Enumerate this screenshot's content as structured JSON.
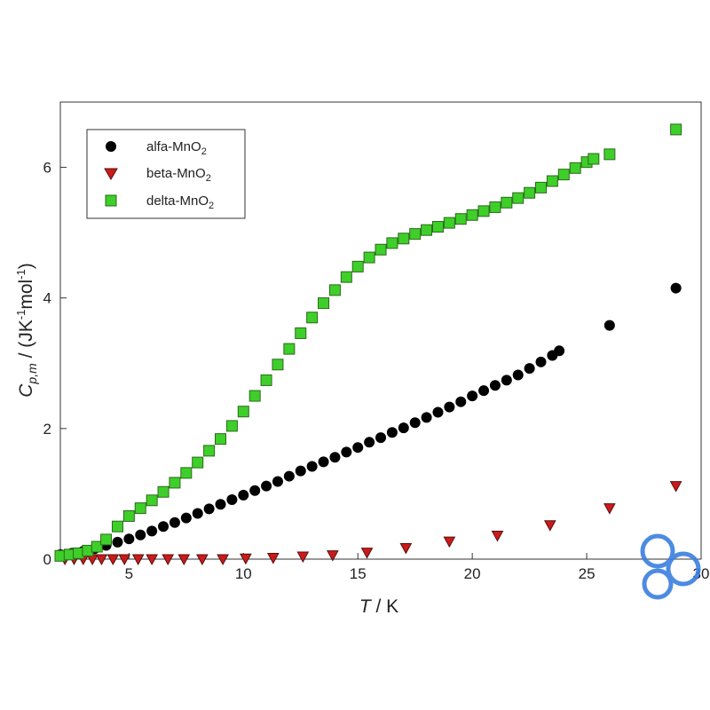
{
  "chart_data": {
    "type": "scatter",
    "xlabel": {
      "italic": "T",
      "rest": " / K"
    },
    "ylabel": {
      "italic": "C",
      "sub": "p,m",
      "rest": " / (JK",
      "sup1": "-1",
      "rest2": "mol",
      "sup2": "-1",
      "rest3": ")"
    },
    "xlim": [
      2,
      30
    ],
    "ylim": [
      0,
      7
    ],
    "xticks": [
      5,
      10,
      15,
      20,
      25,
      30
    ],
    "yticks": [
      0,
      2,
      4,
      6
    ],
    "xtick_labels": [
      "5",
      "10",
      "15",
      "20",
      "25",
      "30"
    ],
    "ytick_labels": [
      "0",
      "2",
      "4",
      "6"
    ],
    "grid": false,
    "legend": {
      "position": "top-left"
    },
    "series": [
      {
        "name": "alfa-MnO2",
        "label_main": "alfa-MnO",
        "label_sub": "2",
        "marker": "circle",
        "color": "#000000",
        "points": [
          [
            2.0,
            0.07
          ],
          [
            2.5,
            0.09
          ],
          [
            3.0,
            0.12
          ],
          [
            3.5,
            0.16
          ],
          [
            4.0,
            0.21
          ],
          [
            4.5,
            0.26
          ],
          [
            5.0,
            0.31
          ],
          [
            5.5,
            0.37
          ],
          [
            6.0,
            0.43
          ],
          [
            6.5,
            0.5
          ],
          [
            7.0,
            0.56
          ],
          [
            7.5,
            0.63
          ],
          [
            8.0,
            0.7
          ],
          [
            8.5,
            0.77
          ],
          [
            9.0,
            0.84
          ],
          [
            9.5,
            0.91
          ],
          [
            10.0,
            0.98
          ],
          [
            10.5,
            1.05
          ],
          [
            11.0,
            1.12
          ],
          [
            11.5,
            1.19
          ],
          [
            12.0,
            1.27
          ],
          [
            12.5,
            1.35
          ],
          [
            13.0,
            1.42
          ],
          [
            13.5,
            1.49
          ],
          [
            14.0,
            1.56
          ],
          [
            14.5,
            1.64
          ],
          [
            15.0,
            1.71
          ],
          [
            15.5,
            1.79
          ],
          [
            16.0,
            1.86
          ],
          [
            16.5,
            1.94
          ],
          [
            17.0,
            2.01
          ],
          [
            17.5,
            2.09
          ],
          [
            18.0,
            2.17
          ],
          [
            18.5,
            2.25
          ],
          [
            19.0,
            2.33
          ],
          [
            19.5,
            2.41
          ],
          [
            20.0,
            2.5
          ],
          [
            20.5,
            2.58
          ],
          [
            21.0,
            2.66
          ],
          [
            21.5,
            2.74
          ],
          [
            22.0,
            2.82
          ],
          [
            22.5,
            2.92
          ],
          [
            23.0,
            3.02
          ],
          [
            23.5,
            3.12
          ],
          [
            23.8,
            3.19
          ],
          [
            26.0,
            3.58
          ],
          [
            28.9,
            4.15
          ]
        ]
      },
      {
        "name": "beta-MnO2",
        "label_main": "beta-MnO",
        "label_sub": "2",
        "marker": "triangle-down",
        "color": "#cc1a1a",
        "points": [
          [
            2.2,
            0.0
          ],
          [
            2.6,
            0.0
          ],
          [
            3.0,
            0.0
          ],
          [
            3.4,
            0.0
          ],
          [
            3.8,
            0.0
          ],
          [
            4.3,
            0.0
          ],
          [
            4.8,
            0.0
          ],
          [
            5.4,
            0.0
          ],
          [
            6.0,
            0.0
          ],
          [
            6.7,
            0.0
          ],
          [
            7.4,
            0.0
          ],
          [
            8.2,
            0.0
          ],
          [
            9.1,
            0.0
          ],
          [
            10.1,
            0.01
          ],
          [
            11.3,
            0.02
          ],
          [
            12.6,
            0.04
          ],
          [
            13.9,
            0.06
          ],
          [
            15.4,
            0.1
          ],
          [
            17.1,
            0.17
          ],
          [
            19.0,
            0.27
          ],
          [
            21.1,
            0.36
          ],
          [
            23.4,
            0.52
          ],
          [
            26.0,
            0.78
          ],
          [
            28.9,
            1.12
          ]
        ]
      },
      {
        "name": "delta-MnO2",
        "label_main": "delta-MnO",
        "label_sub": "2",
        "marker": "square",
        "color": "#3fcf2a",
        "points": [
          [
            2.0,
            0.05
          ],
          [
            2.4,
            0.07
          ],
          [
            2.8,
            0.09
          ],
          [
            3.2,
            0.13
          ],
          [
            3.6,
            0.19
          ],
          [
            4.0,
            0.3
          ],
          [
            4.5,
            0.5
          ],
          [
            5.0,
            0.66
          ],
          [
            5.5,
            0.78
          ],
          [
            6.0,
            0.9
          ],
          [
            6.5,
            1.03
          ],
          [
            7.0,
            1.17
          ],
          [
            7.5,
            1.32
          ],
          [
            8.0,
            1.48
          ],
          [
            8.5,
            1.66
          ],
          [
            9.0,
            1.84
          ],
          [
            9.5,
            2.04
          ],
          [
            10.0,
            2.26
          ],
          [
            10.5,
            2.5
          ],
          [
            11.0,
            2.74
          ],
          [
            11.5,
            2.98
          ],
          [
            12.0,
            3.22
          ],
          [
            12.5,
            3.46
          ],
          [
            13.0,
            3.7
          ],
          [
            13.5,
            3.92
          ],
          [
            14.0,
            4.12
          ],
          [
            14.5,
            4.32
          ],
          [
            15.0,
            4.48
          ],
          [
            15.5,
            4.62
          ],
          [
            16.0,
            4.74
          ],
          [
            16.5,
            4.84
          ],
          [
            17.0,
            4.91
          ],
          [
            17.5,
            4.98
          ],
          [
            18.0,
            5.04
          ],
          [
            18.5,
            5.09
          ],
          [
            19.0,
            5.15
          ],
          [
            19.5,
            5.21
          ],
          [
            20.0,
            5.27
          ],
          [
            20.5,
            5.33
          ],
          [
            21.0,
            5.39
          ],
          [
            21.5,
            5.46
          ],
          [
            22.0,
            5.53
          ],
          [
            22.5,
            5.61
          ],
          [
            23.0,
            5.69
          ],
          [
            23.5,
            5.79
          ],
          [
            24.0,
            5.89
          ],
          [
            24.5,
            5.99
          ],
          [
            25.0,
            6.08
          ],
          [
            25.3,
            6.13
          ],
          [
            26.0,
            6.2
          ],
          [
            28.9,
            6.58
          ]
        ]
      }
    ]
  }
}
